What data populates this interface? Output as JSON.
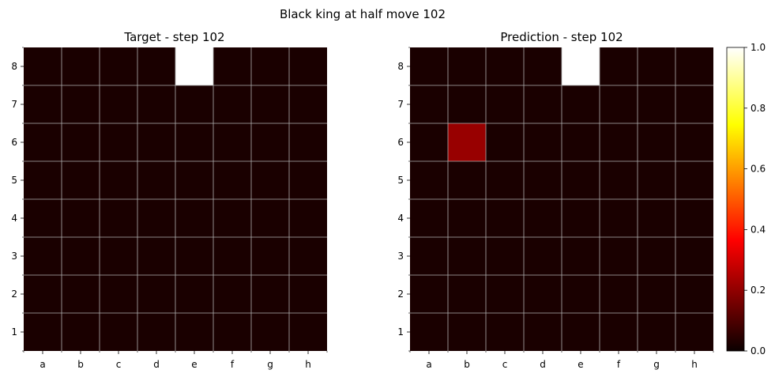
{
  "chart_data": {
    "type": "heatmap",
    "title": "Black king at half move 102",
    "colormap": "hot",
    "grid": true,
    "files": [
      "a",
      "b",
      "c",
      "d",
      "e",
      "f",
      "g",
      "h"
    ],
    "ranks": [
      "8",
      "7",
      "6",
      "5",
      "4",
      "3",
      "2",
      "1"
    ],
    "panels": [
      {
        "title": "Target - step 102",
        "values": [
          [
            0,
            0,
            0,
            0,
            1,
            0,
            0,
            0
          ],
          [
            0,
            0,
            0,
            0,
            0,
            0,
            0,
            0
          ],
          [
            0,
            0,
            0,
            0,
            0,
            0,
            0,
            0
          ],
          [
            0,
            0,
            0,
            0,
            0,
            0,
            0,
            0
          ],
          [
            0,
            0,
            0,
            0,
            0,
            0,
            0,
            0
          ],
          [
            0,
            0,
            0,
            0,
            0,
            0,
            0,
            0
          ],
          [
            0,
            0,
            0,
            0,
            0,
            0,
            0,
            0
          ],
          [
            0,
            0,
            0,
            0,
            0,
            0,
            0,
            0
          ]
        ]
      },
      {
        "title": "Prediction - step 102",
        "values": [
          [
            0,
            0,
            0,
            0,
            1,
            0,
            0,
            0
          ],
          [
            0,
            0,
            0,
            0,
            0,
            0,
            0,
            0
          ],
          [
            0,
            0.2,
            0,
            0,
            0,
            0,
            0,
            0
          ],
          [
            0,
            0,
            0,
            0,
            0,
            0,
            0,
            0
          ],
          [
            0,
            0,
            0,
            0,
            0,
            0,
            0,
            0
          ],
          [
            0,
            0,
            0,
            0,
            0,
            0,
            0,
            0
          ],
          [
            0,
            0,
            0,
            0,
            0,
            0,
            0,
            0
          ],
          [
            0,
            0,
            0,
            0,
            0,
            0,
            0,
            0
          ]
        ]
      }
    ],
    "colorbar": {
      "range": [
        0.0,
        1.0
      ],
      "ticks": [
        "0.0",
        "0.2",
        "0.4",
        "0.6",
        "0.8",
        "1.0"
      ]
    }
  }
}
